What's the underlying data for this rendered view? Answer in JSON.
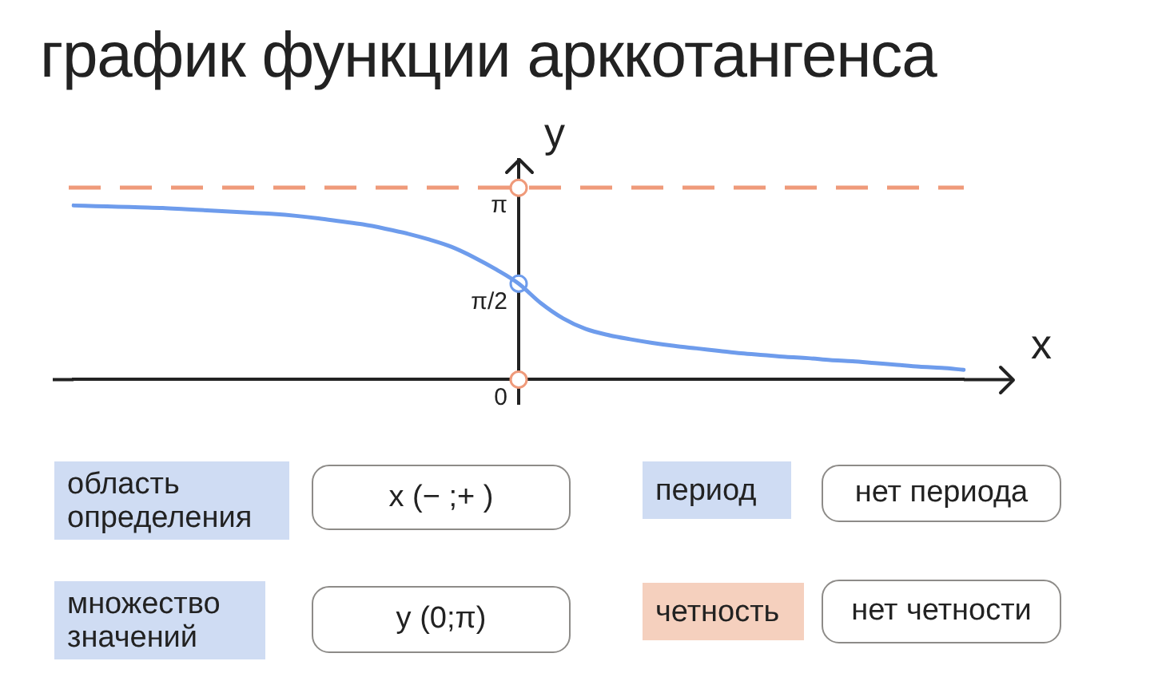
{
  "chart_data": [
    {
      "type": "line",
      "title": "график функции арккотангенса",
      "xlabel": "x",
      "ylabel": "y",
      "categories": [
        null,
        null,
        null,
        null,
        null,
        null,
        null,
        null,
        null,
        null,
        null,
        null,
        null,
        null,
        null,
        null,
        null,
        null,
        null,
        null,
        null,
        null,
        null,
        null,
        null,
        null,
        null,
        null,
        null,
        null,
        null,
        null,
        null,
        null,
        null,
        null,
        null,
        null,
        null,
        null,
        null
      ],
      "series": [
        {
          "type": "line",
          "color": "#6e9cec",
          "marker": "none",
          "values": [
            2.85,
            2.84,
            2.83,
            2.82,
            2.81,
            2.79,
            2.77,
            2.75,
            2.73,
            2.71,
            2.68,
            2.64,
            2.59,
            2.54,
            2.47,
            2.39,
            2.29,
            2.17,
            2.0,
            1.8,
            1.57,
            1.25,
            1.0,
            0.83,
            0.73,
            0.66,
            0.6,
            0.55,
            0.51,
            0.47,
            0.43,
            0.4,
            0.37,
            0.35,
            0.32,
            0.3,
            0.27,
            0.24,
            0.21,
            0.19,
            0.16
          ]
        },
        {
          "type": "scatter",
          "color": "#ef9a7a",
          "marker": "circle",
          "values": [
            null,
            null,
            null,
            null,
            null,
            null,
            null,
            null,
            null,
            null,
            null,
            null,
            null,
            null,
            null,
            null,
            null,
            null,
            null,
            null,
            3.14,
            null,
            null,
            null,
            null,
            null,
            null,
            null,
            null,
            null,
            null,
            null,
            null,
            null,
            null,
            null,
            null,
            null,
            null,
            null,
            null
          ]
        },
        {
          "type": "scatter",
          "color": "#ef9a7a",
          "marker": "circle",
          "values": [
            null,
            null,
            null,
            null,
            null,
            null,
            null,
            null,
            null,
            null,
            null,
            null,
            null,
            null,
            null,
            null,
            null,
            null,
            null,
            null,
            0,
            null,
            null,
            null,
            null,
            null,
            null,
            null,
            null,
            null,
            null,
            null,
            null,
            null,
            null,
            null,
            null,
            null,
            null,
            null,
            null
          ]
        },
        {
          "type": "scatter",
          "color": "#6e9cec",
          "marker": "circle",
          "values": [
            null,
            null,
            null,
            null,
            null,
            null,
            null,
            null,
            null,
            null,
            null,
            null,
            null,
            null,
            null,
            null,
            null,
            null,
            null,
            null,
            1.57,
            null,
            null,
            null,
            null,
            null,
            null,
            null,
            null,
            null,
            null,
            null,
            null,
            null,
            null,
            null,
            null,
            null,
            null,
            null,
            null
          ]
        }
      ],
      "ylim": [
        -0.4,
        3.6
      ],
      "yticks": [
        0,
        {
          "value": 1.5708,
          "label": "π/2"
        },
        {
          "value": 3.1416,
          "label": "π"
        }
      ],
      "ref_lines": [
        {
          "axis": "y",
          "value": 3.1416,
          "color": "#ef9a7a",
          "line_style": "dashed"
        }
      ],
      "tick_labels": "y"
    },
    {
      "type": "other",
      "annotations": [
        "область определения",
        "x (− ;+ )",
        "период",
        "нет периода",
        "множество значений",
        "y (0;π)",
        "четность",
        "нет четности"
      ],
      "colors": [
        "#cfdcf3",
        "#cfdcf3",
        "#cfdcf3",
        "#f5d0be"
      ]
    }
  ]
}
